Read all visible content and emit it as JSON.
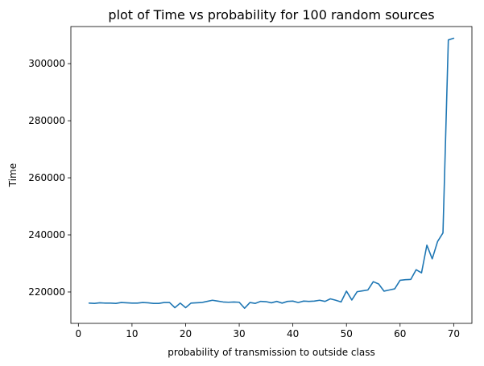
{
  "chart_data": {
    "type": "line",
    "title": "plot of Time vs probability for 100 random sources",
    "xlabel": "probability of transmission to outside class",
    "ylabel": "Time",
    "xlim": [
      -1.4,
      73.4
    ],
    "ylim": [
      209000,
      313000
    ],
    "x_ticks": [
      0,
      10,
      20,
      30,
      40,
      50,
      60,
      70
    ],
    "y_ticks": [
      220000,
      240000,
      260000,
      280000,
      300000
    ],
    "grid": false,
    "line_color": "#1f77b4",
    "series": [
      {
        "x": [
          2,
          3,
          4,
          5,
          6,
          7,
          8,
          9,
          10,
          11,
          12,
          13,
          14,
          15,
          16,
          17,
          18,
          19,
          20,
          21,
          22,
          23,
          24,
          25,
          26,
          27,
          28,
          29,
          30,
          31,
          32,
          33,
          34,
          35,
          36,
          37,
          38,
          39,
          40,
          41,
          42,
          43,
          44,
          45,
          46,
          47,
          48,
          49,
          50,
          51,
          52,
          53,
          54,
          55,
          56,
          57,
          58,
          59,
          60,
          61,
          62,
          63,
          64,
          65,
          66,
          67,
          68,
          69,
          70
        ],
        "values": [
          216100,
          216000,
          216200,
          216100,
          216100,
          216000,
          216300,
          216200,
          216100,
          216100,
          216300,
          216200,
          216000,
          216000,
          216300,
          216300,
          214500,
          216100,
          214500,
          216100,
          216200,
          216300,
          216700,
          217100,
          216800,
          216500,
          216400,
          216500,
          216400,
          214300,
          216300,
          216000,
          216700,
          216600,
          216200,
          216700,
          216100,
          216700,
          216800,
          216300,
          216800,
          216700,
          216800,
          217100,
          216700,
          217600,
          217100,
          216500,
          220300,
          217200,
          220100,
          220400,
          220700,
          223600,
          222800,
          220300,
          220700,
          221100,
          224100,
          224300,
          224400,
          227800,
          226700,
          236400,
          231600,
          237700,
          240700,
          308300,
          308900
        ]
      }
    ]
  }
}
